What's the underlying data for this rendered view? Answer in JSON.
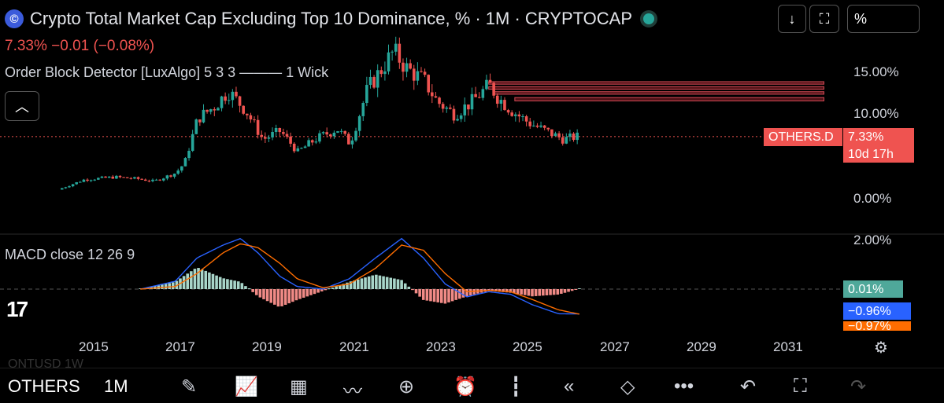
{
  "header": {
    "logo": "©",
    "title": "Crypto Total Market Cap Excluding Top 10 Dominance, % · 1M · CRYPTOCAP",
    "change": "7.33%  −0.01 (−0.08%)",
    "indicator": "Order Block Detector [LuxAlgo] 5 3 3 ——— 1 Wick",
    "collapse_icon": "chevron-up-icon"
  },
  "toolbar": {
    "download_icon": "↓",
    "fullscreen_icon": "⛶",
    "scale_label": "%"
  },
  "price_axis": {
    "labels": [
      "15.00%",
      "10.00%",
      "0.00%"
    ],
    "symbol_tag": "OTHERS.D",
    "price_tag": "7.33%",
    "countdown": "10d 17h"
  },
  "macd": {
    "label": "MACD close 12 26 9",
    "axis_label": "2.00%",
    "hist_tag": "0.01%",
    "macd_tag": "−0.96%",
    "signal_tag": "−0.97%"
  },
  "time_axis": {
    "labels": [
      "2015",
      "2017",
      "2019",
      "2021",
      "2023",
      "2025",
      "2027",
      "2029",
      "2031"
    ],
    "settings_icon": "gear-icon"
  },
  "bottom": {
    "ghost_text": "QNTUSD   1W",
    "symbol": "OTHERS",
    "timeframe": "1M",
    "icons": [
      "✎",
      "📈",
      "▦",
      "〰",
      "⊕",
      "⏰",
      "┇",
      "«",
      "◇",
      "•••",
      "↶",
      "⛶",
      "↷"
    ]
  },
  "colors": {
    "up": "#26a69a",
    "down": "#ef5350",
    "macd_line": "#2962ff",
    "signal_line": "#ff6d00",
    "order_block": "#b22833"
  },
  "chart_data": {
    "type": "candlestick",
    "title": "Crypto Total Market Cap Excluding Top 10 Dominance, %",
    "interval": "1M",
    "y_axis": {
      "unit": "%",
      "ticks": [
        0,
        10,
        15
      ]
    },
    "x_axis": {
      "ticks": [
        "2015",
        "2017",
        "2019",
        "2021",
        "2023",
        "2025",
        "2027",
        "2029",
        "2031"
      ]
    },
    "last_value": 7.33,
    "anchors": [
      {
        "t": 2014.2,
        "v": 1.0
      },
      {
        "t": 2014.8,
        "v": 2.2
      },
      {
        "t": 2015.5,
        "v": 2.5
      },
      {
        "t": 2016.0,
        "v": 2.3
      },
      {
        "t": 2016.4,
        "v": 2.0
      },
      {
        "t": 2016.9,
        "v": 3.0
      },
      {
        "t": 2017.1,
        "v": 4.2
      },
      {
        "t": 2017.4,
        "v": 9.5
      },
      {
        "t": 2017.8,
        "v": 11.0
      },
      {
        "t": 2018.1,
        "v": 12.8
      },
      {
        "t": 2018.5,
        "v": 10.5
      },
      {
        "t": 2018.9,
        "v": 7.0
      },
      {
        "t": 2019.3,
        "v": 8.0
      },
      {
        "t": 2019.7,
        "v": 5.5
      },
      {
        "t": 2020.1,
        "v": 7.0
      },
      {
        "t": 2020.6,
        "v": 8.3
      },
      {
        "t": 2020.9,
        "v": 6.5
      },
      {
        "t": 2021.3,
        "v": 13.0
      },
      {
        "t": 2021.9,
        "v": 17.5
      },
      {
        "t": 2022.2,
        "v": 15.5
      },
      {
        "t": 2022.6,
        "v": 14.0
      },
      {
        "t": 2022.9,
        "v": 11.5
      },
      {
        "t": 2023.3,
        "v": 10.0
      },
      {
        "t": 2023.7,
        "v": 11.5
      },
      {
        "t": 2024.1,
        "v": 13.5
      },
      {
        "t": 2024.3,
        "v": 12.0
      },
      {
        "t": 2024.6,
        "v": 10.5
      },
      {
        "t": 2025.0,
        "v": 9.0
      },
      {
        "t": 2025.4,
        "v": 8.0
      },
      {
        "t": 2025.8,
        "v": 7.0
      },
      {
        "t": 2026.1,
        "v": 7.33
      }
    ],
    "order_blocks": [
      {
        "from": 2024.0,
        "to": 2031.7,
        "top": 13.9,
        "bottom": 13.6
      },
      {
        "from": 2024.0,
        "to": 2031.7,
        "top": 13.3,
        "bottom": 13.0
      },
      {
        "from": 2024.1,
        "to": 2031.7,
        "top": 12.7,
        "bottom": 12.4
      },
      {
        "from": 2024.6,
        "to": 2031.7,
        "top": 12.0,
        "bottom": 11.6
      }
    ],
    "macd": {
      "params": [
        12,
        26,
        9
      ],
      "macd_line": [
        {
          "t": 2016.0,
          "v": 0.0
        },
        {
          "t": 2016.8,
          "v": 0.3
        },
        {
          "t": 2017.3,
          "v": 1.2
        },
        {
          "t": 2017.9,
          "v": 1.7
        },
        {
          "t": 2018.3,
          "v": 1.95
        },
        {
          "t": 2018.7,
          "v": 1.4
        },
        {
          "t": 2019.2,
          "v": 0.5
        },
        {
          "t": 2019.6,
          "v": 0.1
        },
        {
          "t": 2020.2,
          "v": 0.0
        },
        {
          "t": 2020.8,
          "v": 0.4
        },
        {
          "t": 2021.4,
          "v": 1.2
        },
        {
          "t": 2022.0,
          "v": 1.95
        },
        {
          "t": 2022.5,
          "v": 1.2
        },
        {
          "t": 2023.0,
          "v": 0.2
        },
        {
          "t": 2023.5,
          "v": -0.3
        },
        {
          "t": 2024.0,
          "v": -0.1
        },
        {
          "t": 2024.5,
          "v": -0.2
        },
        {
          "t": 2025.0,
          "v": -0.6
        },
        {
          "t": 2025.6,
          "v": -0.95
        },
        {
          "t": 2026.1,
          "v": -0.96
        }
      ],
      "signal_line": [
        {
          "t": 2016.0,
          "v": 0.0
        },
        {
          "t": 2016.8,
          "v": 0.1
        },
        {
          "t": 2017.3,
          "v": 0.6
        },
        {
          "t": 2017.9,
          "v": 1.4
        },
        {
          "t": 2018.3,
          "v": 1.75
        },
        {
          "t": 2018.7,
          "v": 1.6
        },
        {
          "t": 2019.2,
          "v": 1.0
        },
        {
          "t": 2019.6,
          "v": 0.4
        },
        {
          "t": 2020.2,
          "v": 0.05
        },
        {
          "t": 2020.8,
          "v": 0.2
        },
        {
          "t": 2021.4,
          "v": 0.8
        },
        {
          "t": 2022.0,
          "v": 1.7
        },
        {
          "t": 2022.5,
          "v": 1.5
        },
        {
          "t": 2023.0,
          "v": 0.6
        },
        {
          "t": 2023.5,
          "v": -0.1
        },
        {
          "t": 2024.0,
          "v": -0.05
        },
        {
          "t": 2024.5,
          "v": -0.1
        },
        {
          "t": 2025.0,
          "v": -0.4
        },
        {
          "t": 2025.6,
          "v": -0.8
        },
        {
          "t": 2026.1,
          "v": -0.97
        }
      ],
      "histogram_tag": 0.01
    }
  }
}
